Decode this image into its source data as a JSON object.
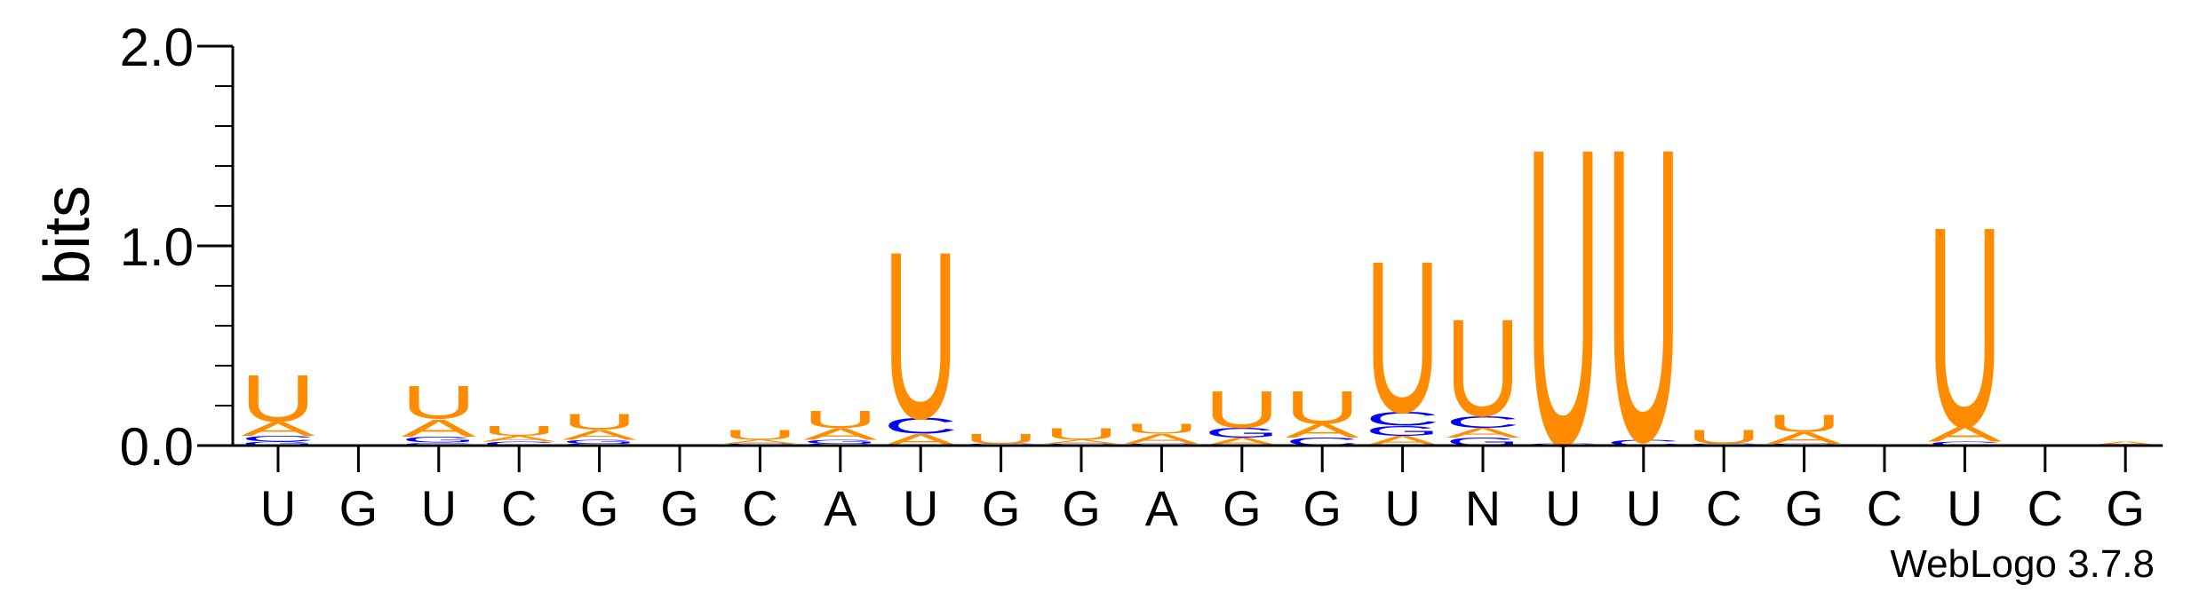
{
  "chart_data": {
    "type": "sequence-logo",
    "ylabel": "bits",
    "xlabel": "",
    "ylim": [
      0,
      2.0
    ],
    "yticks": [
      0.0,
      1.0,
      2.0
    ],
    "ytick_labels": [
      "0.0",
      "1.0",
      "2.0"
    ],
    "positions": [
      "U",
      "G",
      "U",
      "C",
      "G",
      "G",
      "C",
      "A",
      "U",
      "G",
      "G",
      "A",
      "G",
      "G",
      "U",
      "N",
      "U",
      "U",
      "C",
      "G",
      "C",
      "U",
      "C",
      "G"
    ],
    "colors": {
      "U": "#ff8c00",
      "A": "#ff8c00",
      "C": "#0000ff",
      "G": "#0000ff"
    },
    "columns": [
      [
        {
          "letter": "G",
          "value": 0.02
        },
        {
          "letter": "C",
          "value": 0.03
        },
        {
          "letter": "A",
          "value": 0.07
        },
        {
          "letter": "U",
          "value": 0.24
        }
      ],
      [],
      [
        {
          "letter": "C",
          "value": 0.015
        },
        {
          "letter": "G",
          "value": 0.03
        },
        {
          "letter": "A",
          "value": 0.09
        },
        {
          "letter": "U",
          "value": 0.17
        }
      ],
      [
        {
          "letter": "C",
          "value": 0.02
        },
        {
          "letter": "A",
          "value": 0.03
        },
        {
          "letter": "U",
          "value": 0.05
        }
      ],
      [
        {
          "letter": "C",
          "value": 0.01
        },
        {
          "letter": "G",
          "value": 0.02
        },
        {
          "letter": "A",
          "value": 0.05
        },
        {
          "letter": "U",
          "value": 0.08
        }
      ],
      [],
      [
        {
          "letter": "C",
          "value": 0.01
        },
        {
          "letter": "A",
          "value": 0.02
        },
        {
          "letter": "U",
          "value": 0.05
        }
      ],
      [
        {
          "letter": "C",
          "value": 0.01
        },
        {
          "letter": "G",
          "value": 0.02
        },
        {
          "letter": "A",
          "value": 0.06
        },
        {
          "letter": "U",
          "value": 0.09
        }
      ],
      [
        {
          "letter": "A",
          "value": 0.06
        },
        {
          "letter": "C",
          "value": 0.08
        },
        {
          "letter": "U",
          "value": 0.86
        }
      ],
      [
        {
          "letter": "C",
          "value": 0.01
        },
        {
          "letter": "U",
          "value": 0.05
        }
      ],
      [
        {
          "letter": "C",
          "value": 0.01
        },
        {
          "letter": "A",
          "value": 0.02
        },
        {
          "letter": "U",
          "value": 0.06
        }
      ],
      [
        {
          "letter": "C",
          "value": 0.01
        },
        {
          "letter": "A",
          "value": 0.05
        },
        {
          "letter": "U",
          "value": 0.05
        }
      ],
      [
        {
          "letter": "A",
          "value": 0.04
        },
        {
          "letter": "G",
          "value": 0.05
        },
        {
          "letter": "U",
          "value": 0.19
        }
      ],
      [
        {
          "letter": "C",
          "value": 0.04
        },
        {
          "letter": "A",
          "value": 0.07
        },
        {
          "letter": "U",
          "value": 0.17
        }
      ],
      [
        {
          "letter": "A",
          "value": 0.05
        },
        {
          "letter": "G",
          "value": 0.05
        },
        {
          "letter": "C",
          "value": 0.07
        },
        {
          "letter": "U",
          "value": 0.78
        }
      ],
      [
        {
          "letter": "G",
          "value": 0.04
        },
        {
          "letter": "A",
          "value": 0.05
        },
        {
          "letter": "C",
          "value": 0.06
        },
        {
          "letter": "U",
          "value": 0.5
        }
      ],
      [
        {
          "letter": "C",
          "value": 0.01
        },
        {
          "letter": "U",
          "value": 1.53
        }
      ],
      [
        {
          "letter": "C",
          "value": 0.03
        },
        {
          "letter": "U",
          "value": 1.51
        }
      ],
      [
        {
          "letter": "C",
          "value": 0.01
        },
        {
          "letter": "U",
          "value": 0.07
        }
      ],
      [
        {
          "letter": "C",
          "value": 0.01
        },
        {
          "letter": "A",
          "value": 0.06
        },
        {
          "letter": "U",
          "value": 0.09
        }
      ],
      [],
      [
        {
          "letter": "C",
          "value": 0.02
        },
        {
          "letter": "A",
          "value": 0.08
        },
        {
          "letter": "U",
          "value": 1.03
        }
      ],
      [],
      [
        {
          "letter": "A",
          "value": 0.02
        }
      ]
    ]
  },
  "footer": {
    "credit": "WebLogo 3.7.8"
  }
}
